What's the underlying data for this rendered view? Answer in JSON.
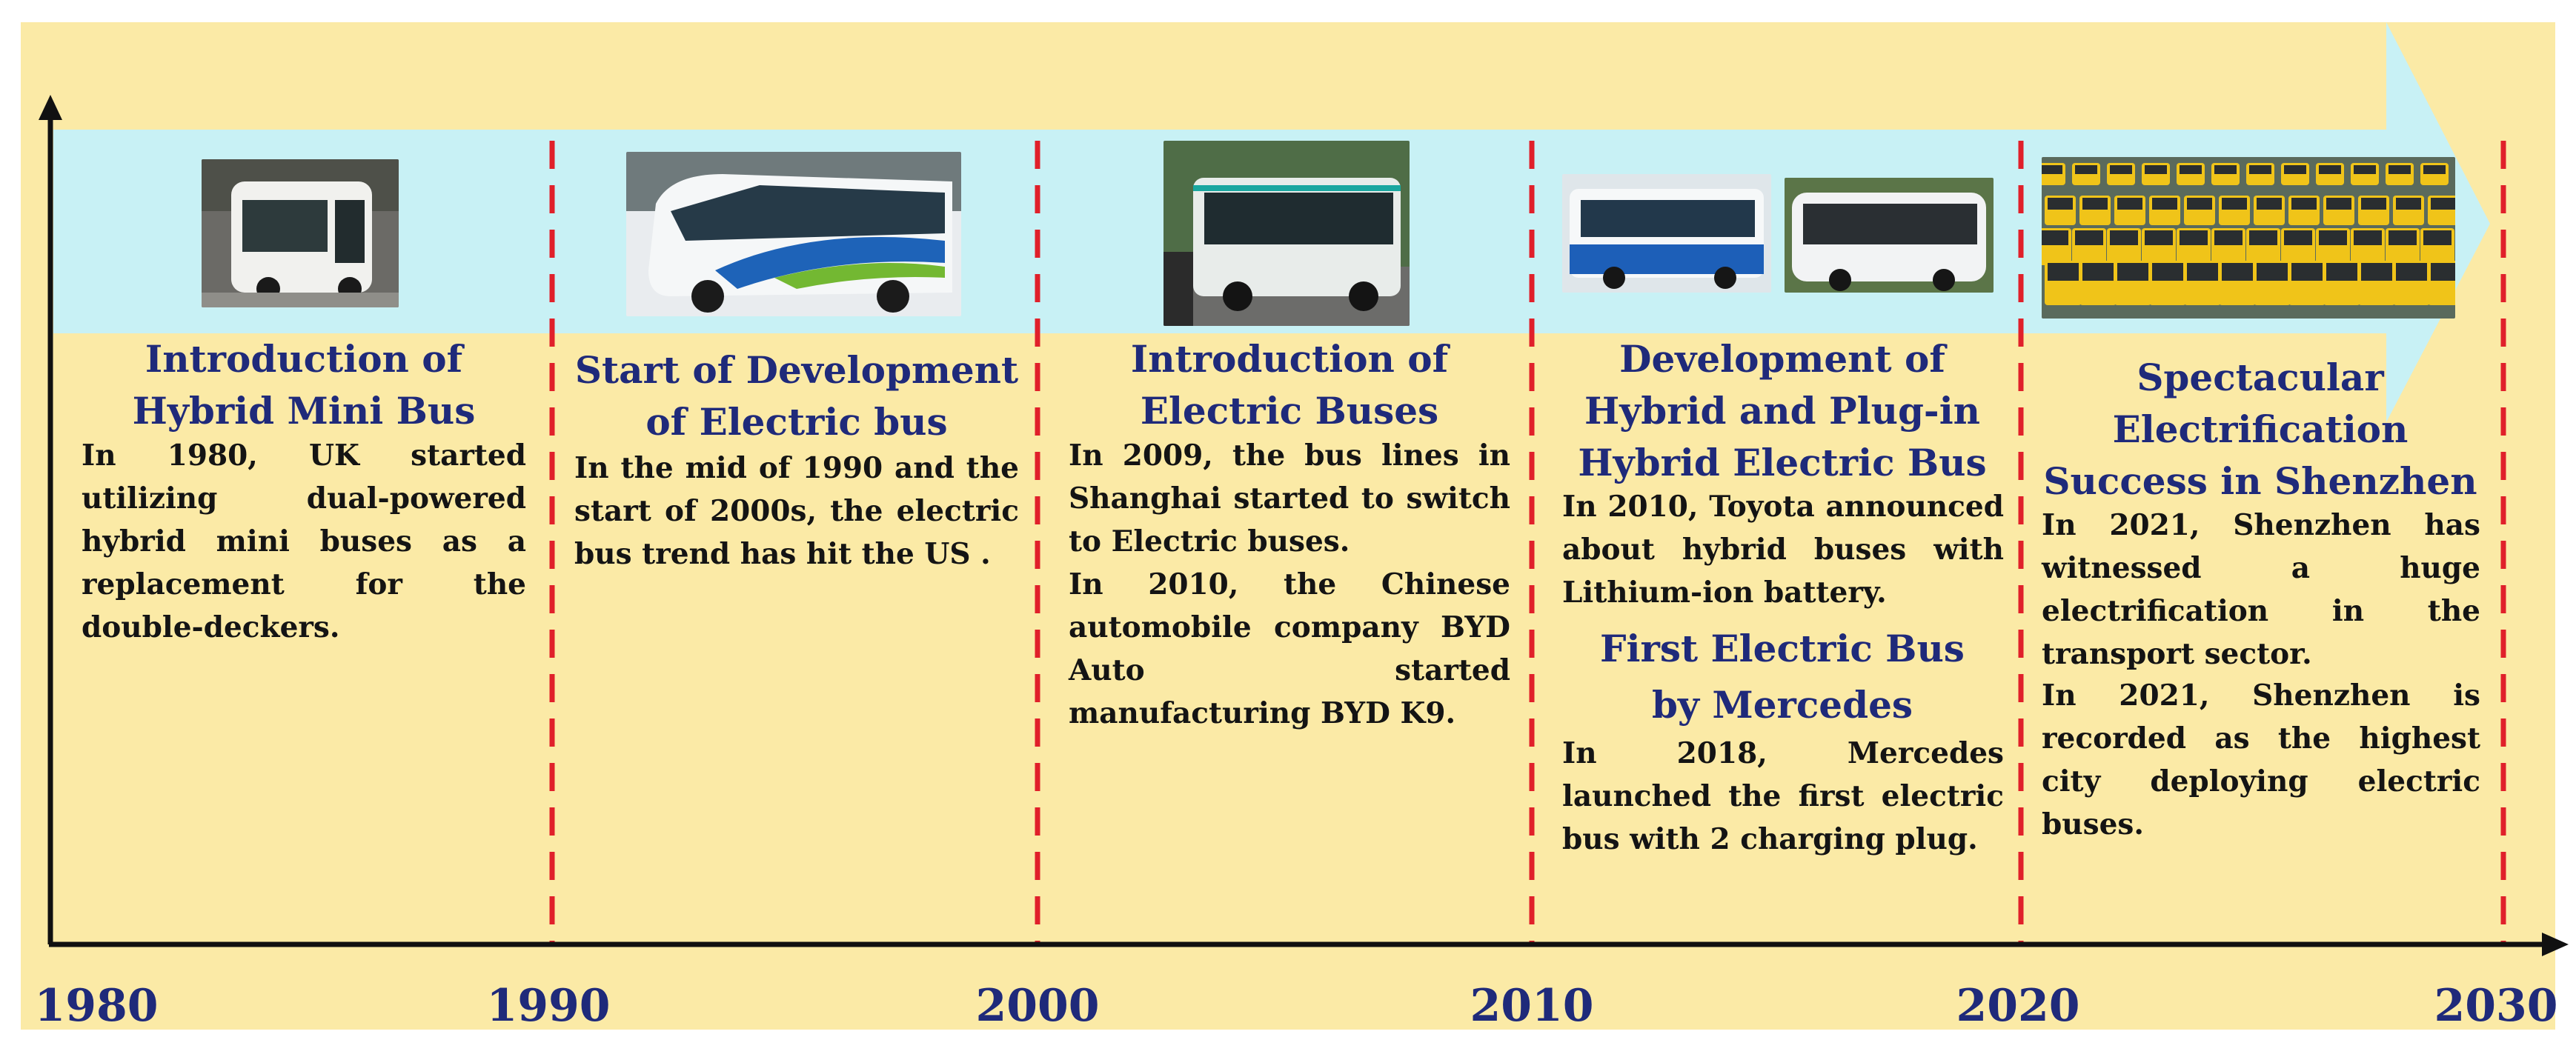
{
  "years": [
    "1980",
    "1990",
    "2000",
    "2010",
    "2020",
    "2030"
  ],
  "eras": [
    {
      "title": "Introduction of Hybrid Mini Bus",
      "body": "In 1980, UK started utilizing dual-powered hybrid mini buses as a replacement for the double-deckers."
    },
    {
      "title": "Start of Development of Electric bus",
      "body": "In the mid of 1990 and the start of 2000s, the electric bus trend has hit the US ."
    },
    {
      "title": "Introduction of Electric Buses",
      "body": "In 2009, the bus lines in Shanghai started to switch to Electric buses.",
      "body2": "In 2010, the Chinese automobile company BYD Auto started manufacturing BYD K9."
    },
    {
      "title": "Development of Hybrid and Plug-in Hybrid Electric Bus",
      "body": "In 2010, Toyota announced about hybrid buses with Lithium-ion battery.",
      "title2": "First Electric Bus by Mercedes",
      "body2": "In 2018, Mercedes launched the first electric bus with 2 charging plug."
    },
    {
      "title": "Spectacular Electrification Success in Shenzhen",
      "body": "In 2021, Shenzhen has witnessed a huge electrification in the transport sector.",
      "body2": "In 2021, Shenzhen is recorded as the highest city deploying electric buses."
    }
  ],
  "colors": {
    "background": "#fbeaa6",
    "arrow": "#c8f1f5",
    "divider": "#e0202a",
    "axis": "#111111",
    "title": "#1f2a7a",
    "body": "#141414"
  },
  "icons": [
    "hybrid-mini-bus-photo",
    "electric-bus-photo",
    "electric-buses-photo",
    "hybrid-bus-photo",
    "mercedes-electric-bus-photo",
    "shenzhen-bus-fleet-photo"
  ]
}
